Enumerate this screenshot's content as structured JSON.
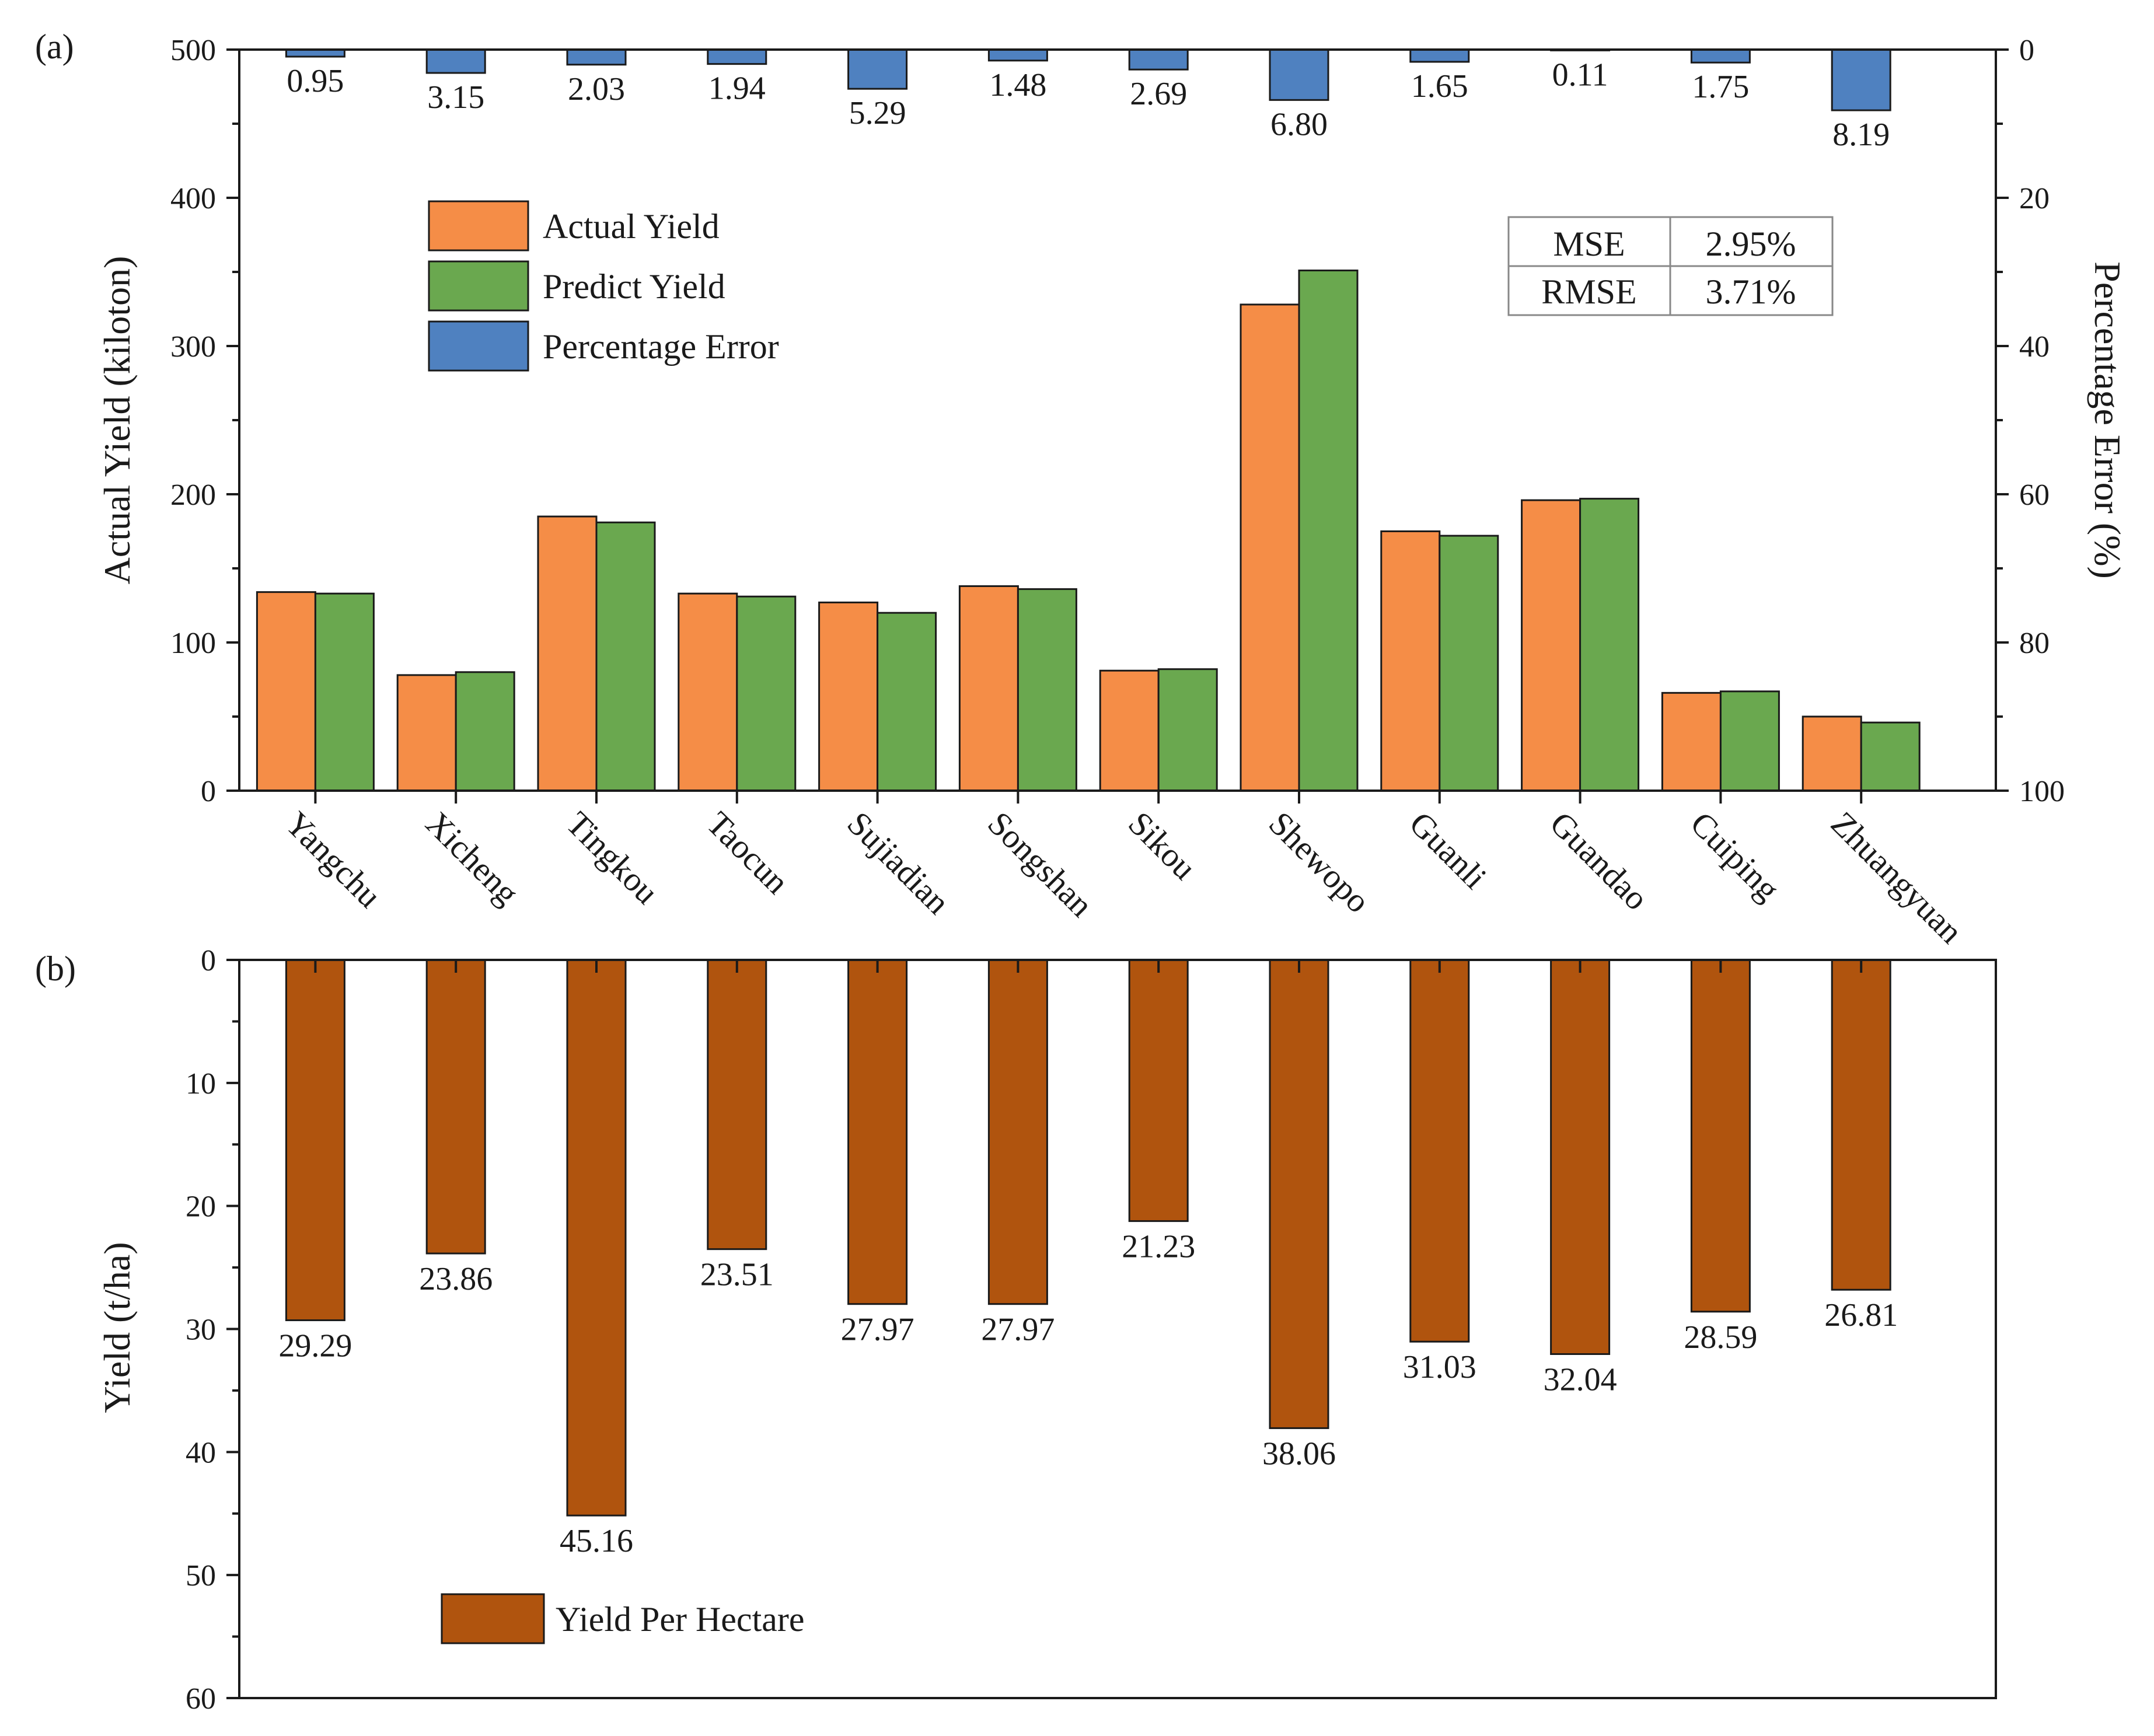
{
  "chart_data": [
    {
      "panel": "(a)",
      "type": "bar",
      "title": "",
      "xlabel": "",
      "ylabel": "Actual Yield (kiloton)",
      "y2label": "Percentage Error (%)",
      "ylim": [
        0,
        500
      ],
      "yticks": [
        "0",
        "100",
        "200",
        "300",
        "400",
        "500"
      ],
      "y2lim": [
        0,
        100
      ],
      "y2_inverted": true,
      "y2ticks": [
        "0",
        "20",
        "40",
        "60",
        "80",
        "100"
      ],
      "categories": [
        "Yangchu",
        "Xicheng",
        "Tingkou",
        "Taocun",
        "Sujiadian",
        "Songshan",
        "Sikou",
        "Shewopo",
        "Guanli",
        "Guandao",
        "Cuiping",
        "Zhuangyuan"
      ],
      "series": [
        {
          "name": "Actual Yield",
          "axis": "left",
          "color": "#f58d47",
          "values": [
            134,
            78,
            185,
            133,
            127,
            138,
            81,
            328,
            175,
            196,
            66,
            50
          ]
        },
        {
          "name": "Predict Yield",
          "axis": "left",
          "color": "#6aa84f",
          "values": [
            133,
            80,
            181,
            131,
            120,
            136,
            82,
            351,
            172,
            197,
            67,
            46
          ]
        },
        {
          "name": "Percentage Error",
          "axis": "right",
          "color": "#4f81c0",
          "values": [
            0.95,
            3.15,
            2.03,
            1.94,
            5.29,
            1.48,
            2.69,
            6.8,
            1.65,
            0.11,
            1.75,
            8.19
          ],
          "labels": [
            "0.95",
            "3.15",
            "2.03",
            "1.94",
            "5.29",
            "1.48",
            "2.69",
            "6.80",
            "1.65",
            "0.11",
            "1.75",
            "8.19"
          ]
        }
      ],
      "legend_position": "top-left",
      "metrics_table": [
        {
          "name": "MSE",
          "value": "2.95%"
        },
        {
          "name": "RMSE",
          "value": "3.71%"
        }
      ]
    },
    {
      "panel": "(b)",
      "type": "bar",
      "title": "",
      "xlabel": "",
      "ylabel": "Yield (t/ha)",
      "ylim": [
        0,
        60
      ],
      "y_inverted": true,
      "yticks": [
        "0",
        "10",
        "20",
        "30",
        "40",
        "50",
        "60"
      ],
      "categories": [
        "Yangchu",
        "Xicheng",
        "Tingkou",
        "Taocun",
        "Sujiadian",
        "Songshan",
        "Sikou",
        "Shewopo",
        "Guanli",
        "Guandao",
        "Cuiping",
        "Zhuangyuan"
      ],
      "series": [
        {
          "name": "Yield Per Hectare",
          "color": "#b0540e",
          "values": [
            29.29,
            23.86,
            45.16,
            23.51,
            27.97,
            27.97,
            21.23,
            38.06,
            31.03,
            32.04,
            28.59,
            26.81
          ],
          "labels": [
            "29.29",
            "23.86",
            "45.16",
            "23.51",
            "27.97",
            "27.97",
            "21.23",
            "38.06",
            "31.03",
            "32.04",
            "28.59",
            "26.81"
          ]
        }
      ],
      "legend_position": "bottom-left"
    }
  ]
}
